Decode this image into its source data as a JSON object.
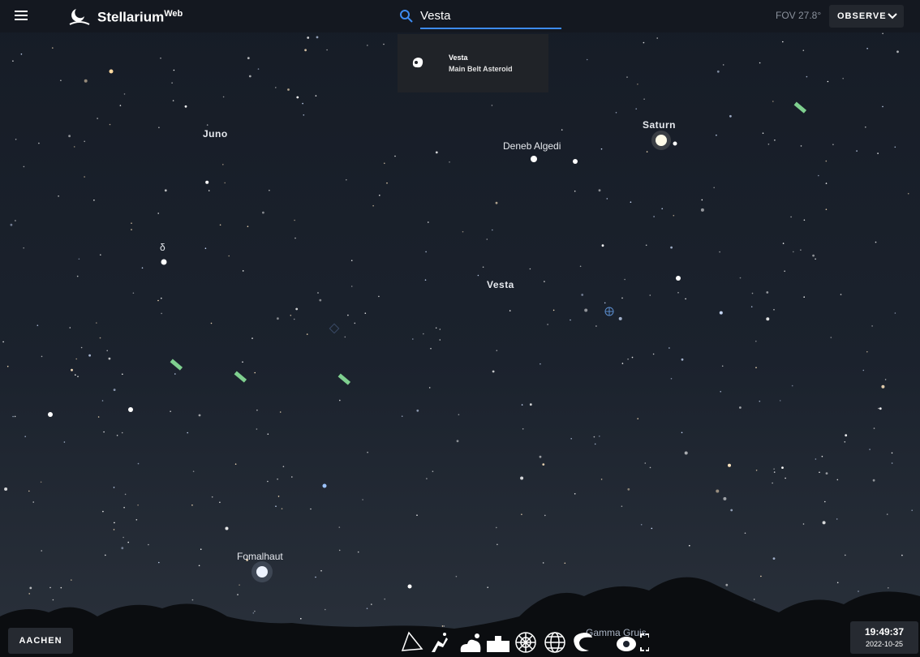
{
  "app": {
    "name": "Stellarium",
    "name_suffix": "Web"
  },
  "search": {
    "query": "Vesta",
    "results": [
      {
        "title": "Vesta",
        "subtitle": "Main Belt Asteroid"
      }
    ]
  },
  "fov": "FOV 27.8°",
  "menu": {
    "observe": "OBSERVE"
  },
  "sky_labels": {
    "juno": "Juno",
    "saturn": "Saturn",
    "deneb_algedi": "Deneb Algedi",
    "delta": "δ",
    "vesta": "Vesta",
    "fomalhaut": "Fomalhaut",
    "gamma_gruis": "Gamma Gruis"
  },
  "location": "AACHEN",
  "time": "19:49:37",
  "date": "2022-10-25"
}
